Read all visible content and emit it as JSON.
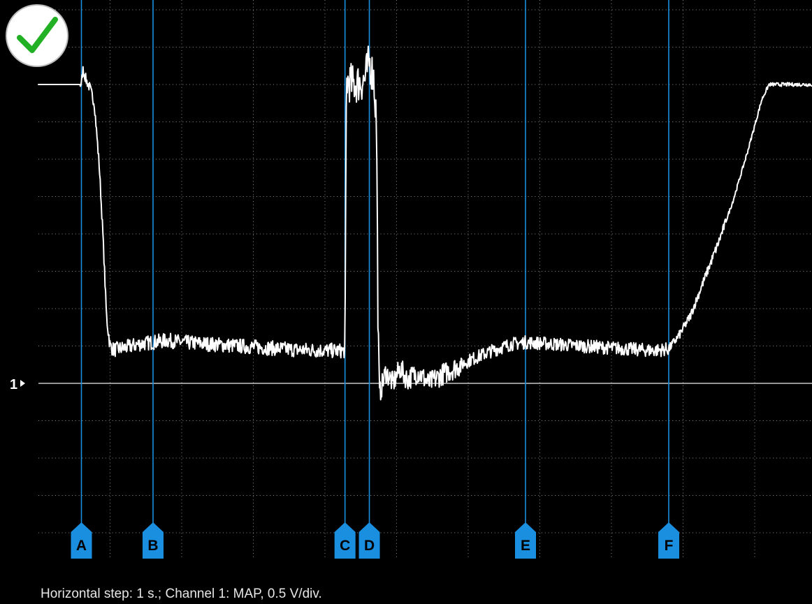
{
  "status_icon": "checkmark-icon",
  "colors": {
    "background": "#000000",
    "grid": "#8a8a8a",
    "trace": "#ffffff",
    "cursor": "#1a8fe0",
    "check": "#22b024"
  },
  "footer": {
    "text": "Horizontal step: 1 s.; Channel 1: MAP, 0.5 V/div."
  },
  "chart_data": {
    "type": "line",
    "title": "",
    "xlabel": "",
    "ylabel": "",
    "x_unit": "s",
    "y_unit": "div",
    "xlim": [
      -1,
      10
    ],
    "ylim": [
      -5,
      10
    ],
    "grid": true,
    "zero_marker": "1",
    "series": [
      {
        "points": [
          [
            -1.0,
            8.0
          ],
          [
            -0.6,
            8.0
          ],
          [
            -0.4,
            8.0
          ],
          [
            -0.38,
            8.4
          ],
          [
            -0.33,
            8.1
          ],
          [
            -0.28,
            7.9
          ],
          [
            -0.22,
            7.5
          ],
          [
            -0.15,
            5.8
          ],
          [
            -0.1,
            4.0
          ],
          [
            -0.05,
            1.8
          ],
          [
            0.0,
            1.0
          ],
          [
            0.05,
            0.9
          ],
          [
            0.2,
            0.95
          ],
          [
            0.4,
            1.05
          ],
          [
            0.6,
            1.1
          ],
          [
            0.8,
            1.15
          ],
          [
            1.0,
            1.1
          ],
          [
            1.4,
            1.05
          ],
          [
            1.8,
            1.0
          ],
          [
            2.2,
            0.95
          ],
          [
            2.6,
            0.9
          ],
          [
            3.0,
            0.88
          ],
          [
            3.28,
            0.87
          ],
          [
            3.3,
            8.1
          ],
          [
            3.4,
            8.0
          ],
          [
            3.55,
            8.1
          ],
          [
            3.62,
            8.6
          ],
          [
            3.68,
            8.2
          ],
          [
            3.72,
            7.0
          ],
          [
            3.74,
            2.0
          ],
          [
            3.76,
            -0.3
          ],
          [
            3.85,
            0.3
          ],
          [
            3.95,
            0.0
          ],
          [
            4.05,
            0.4
          ],
          [
            4.15,
            0.1
          ],
          [
            4.3,
            0.3
          ],
          [
            4.45,
            0.0
          ],
          [
            4.6,
            0.2
          ],
          [
            4.8,
            0.4
          ],
          [
            5.0,
            0.6
          ],
          [
            5.3,
            0.85
          ],
          [
            5.6,
            1.05
          ],
          [
            5.8,
            1.1
          ],
          [
            6.2,
            1.05
          ],
          [
            6.6,
            1.0
          ],
          [
            7.0,
            0.95
          ],
          [
            7.4,
            0.9
          ],
          [
            7.6,
            0.88
          ],
          [
            7.8,
            0.92
          ],
          [
            7.95,
            1.3
          ],
          [
            8.1,
            1.8
          ],
          [
            8.3,
            2.8
          ],
          [
            8.5,
            3.8
          ],
          [
            8.7,
            4.9
          ],
          [
            8.9,
            6.2
          ],
          [
            9.1,
            7.6
          ],
          [
            9.2,
            8.0
          ],
          [
            10.0,
            8.0
          ]
        ]
      }
    ],
    "cursors": [
      {
        "label": "A",
        "x": -0.4
      },
      {
        "label": "B",
        "x": 0.6
      },
      {
        "label": "C",
        "x": 3.28
      },
      {
        "label": "D",
        "x": 3.62
      },
      {
        "label": "E",
        "x": 5.8
      },
      {
        "label": "F",
        "x": 7.8
      }
    ]
  }
}
